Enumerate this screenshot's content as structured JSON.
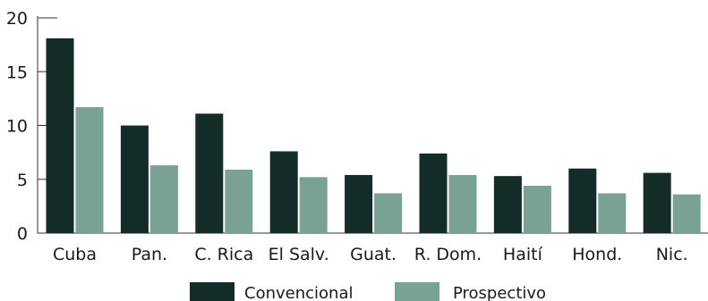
{
  "chart_data": {
    "type": "bar",
    "categories": [
      "Cuba",
      "Pan.",
      "C. Rica",
      "El Salv.",
      "Guat.",
      "R. Dom.",
      "Haití",
      "Hond.",
      "Nic."
    ],
    "series": [
      {
        "name": "Convencional",
        "color": "#132c27",
        "values": [
          18.1,
          10.0,
          11.1,
          7.6,
          5.4,
          7.4,
          5.3,
          6.0,
          5.6
        ]
      },
      {
        "name": "Prospectivo",
        "color": "#7aa294",
        "values": [
          11.7,
          6.3,
          5.9,
          5.2,
          3.7,
          5.4,
          4.4,
          3.7,
          3.6
        ]
      }
    ],
    "title": "",
    "xlabel": "",
    "ylabel": "",
    "ylim": [
      0,
      20
    ],
    "yticks": [
      0,
      5,
      10,
      15,
      20
    ],
    "grid": false,
    "legend": "bottom"
  }
}
